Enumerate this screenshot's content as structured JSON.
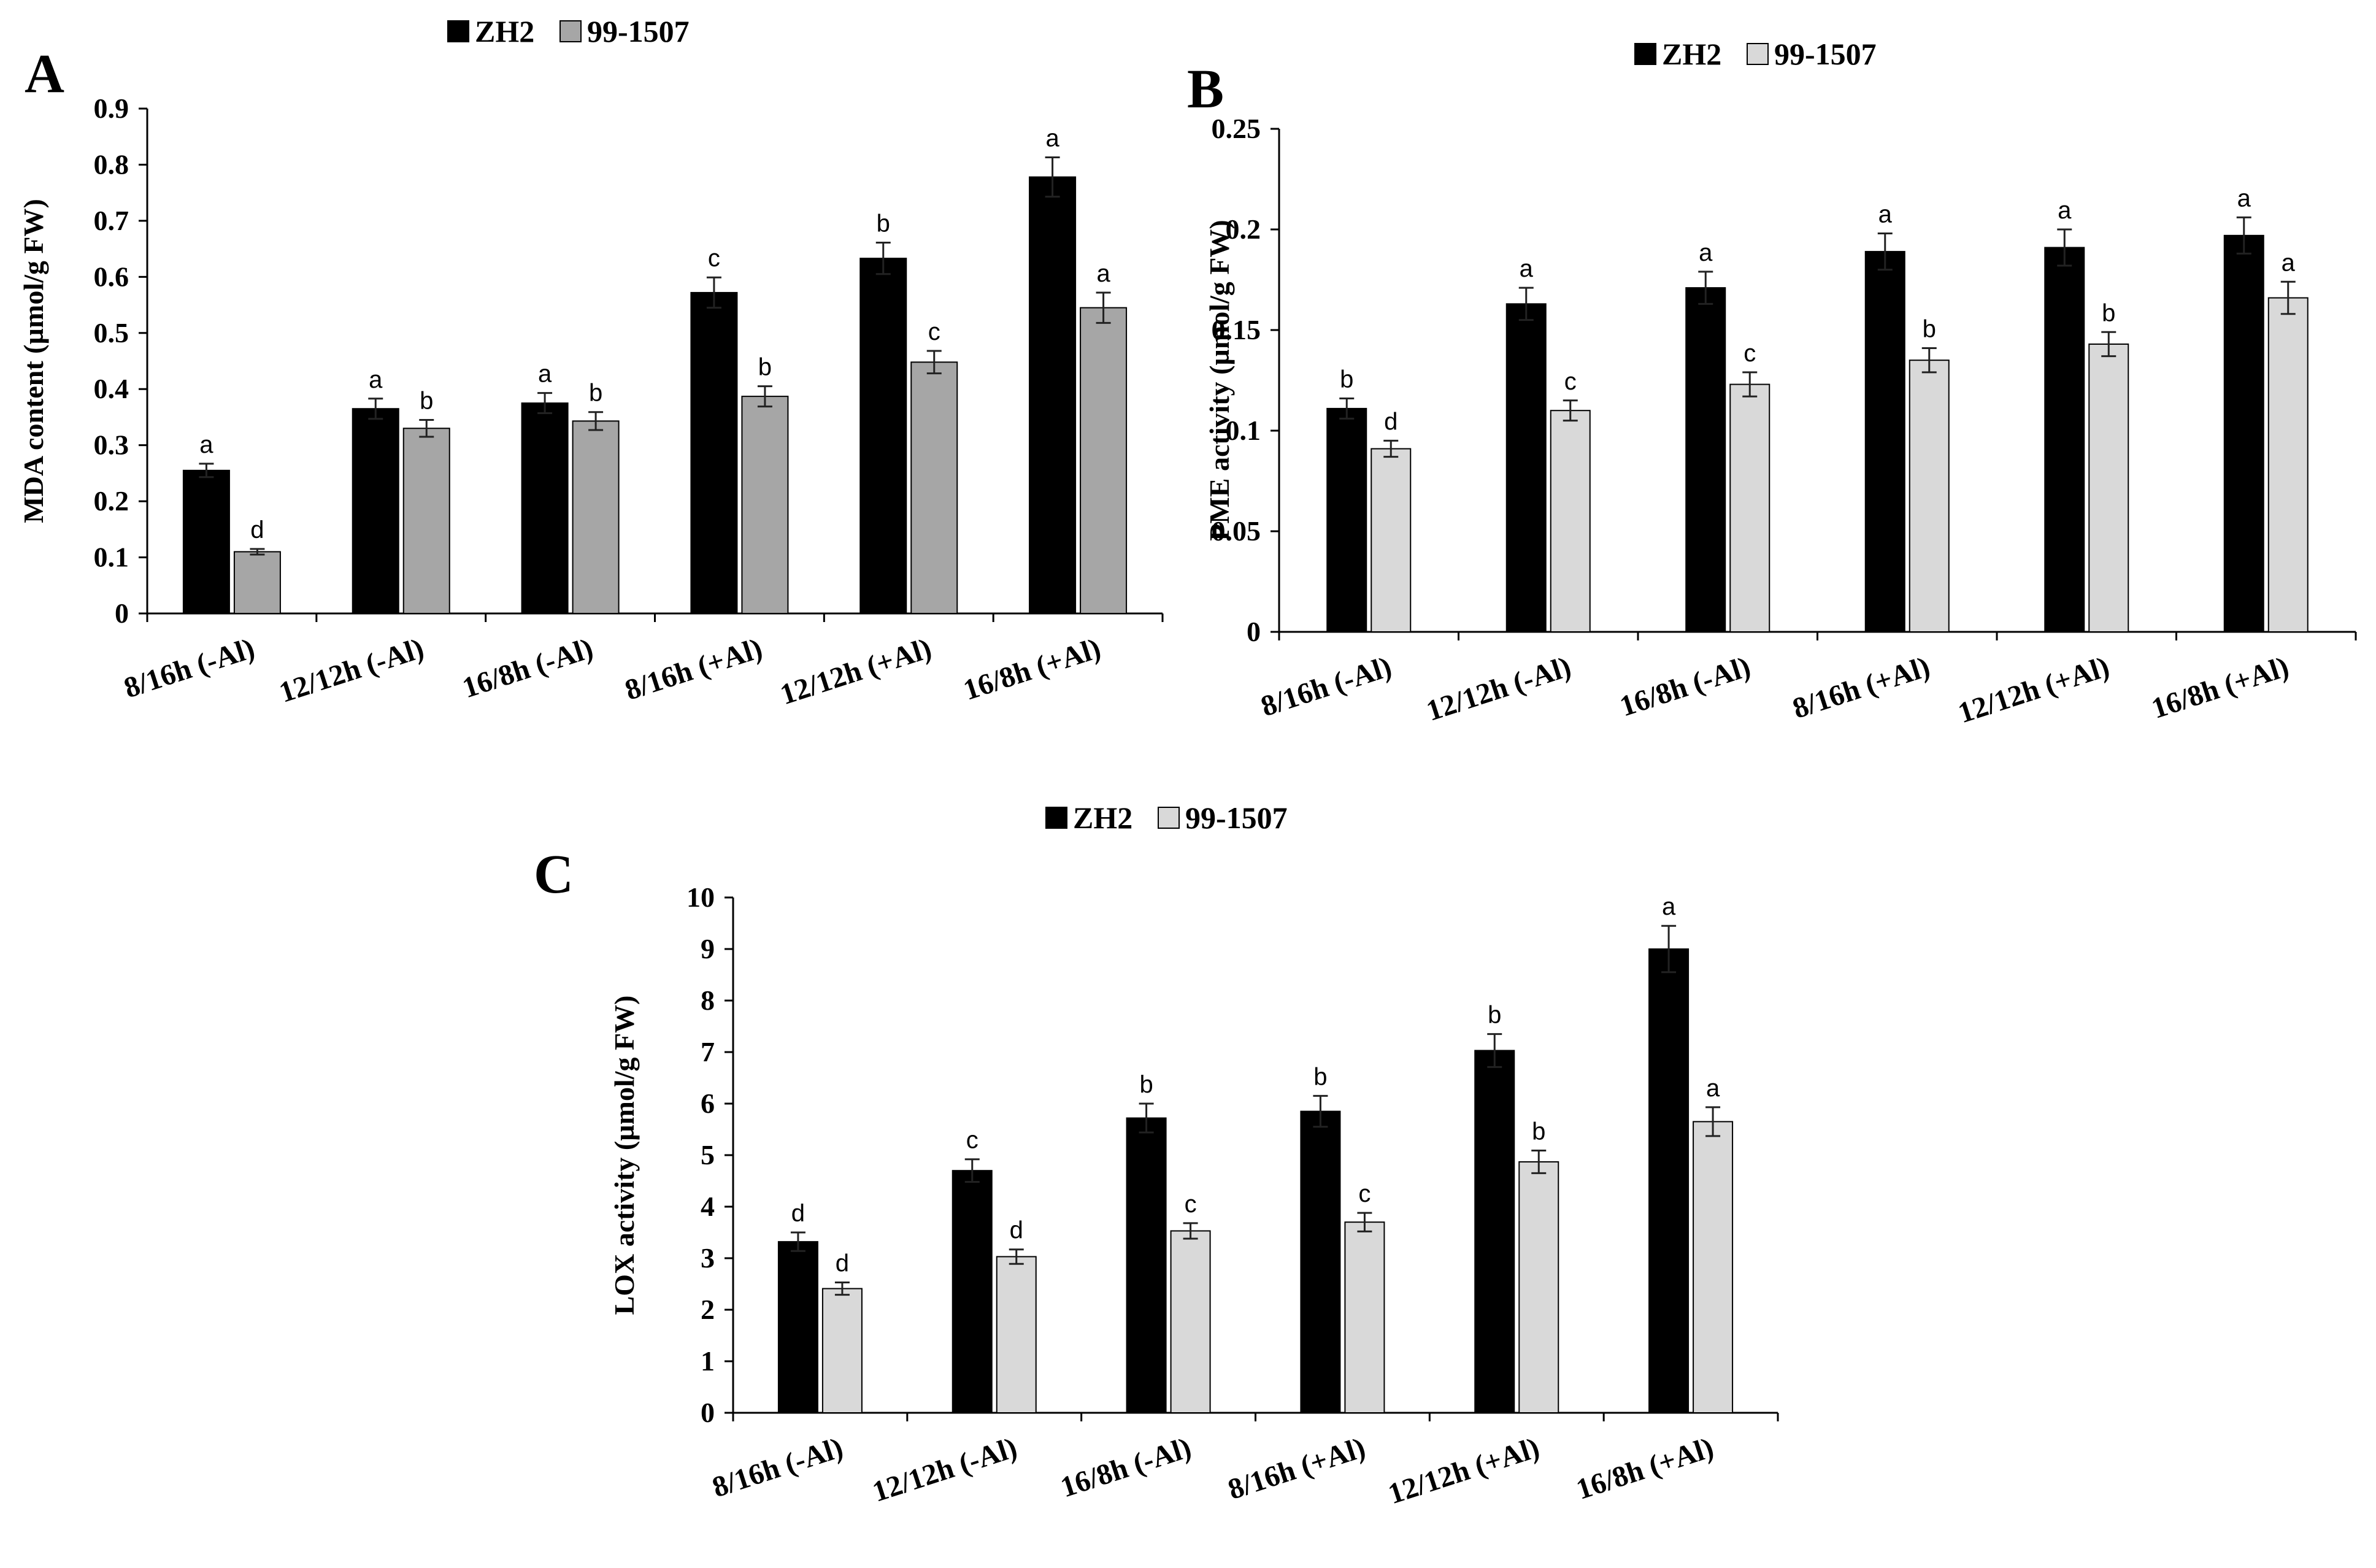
{
  "chart_data": [
    {
      "panel_label": "A",
      "type": "bar",
      "categories": [
        "8/16h (-Al)",
        "12/12h (-Al)",
        "16/8h (-Al)",
        "8/16h (+Al)",
        "12/12h (+Al)",
        "16/8h (+Al)"
      ],
      "series": [
        {
          "name": "ZH2",
          "color": "#000000",
          "values": [
            0.255,
            0.365,
            0.375,
            0.572,
            0.633,
            0.778
          ],
          "errors": [
            0.012,
            0.018,
            0.018,
            0.027,
            0.028,
            0.035
          ],
          "letters": [
            "a",
            "a",
            "a",
            "c",
            "b",
            "a"
          ]
        },
        {
          "name": "99-1507",
          "color": "#a6a6a6",
          "values": [
            0.11,
            0.33,
            0.343,
            0.387,
            0.448,
            0.545
          ],
          "errors": [
            0.005,
            0.015,
            0.016,
            0.018,
            0.02,
            0.027
          ],
          "letters": [
            "d",
            "b",
            "b",
            "b",
            "c",
            "a"
          ]
        }
      ],
      "ylabel": "MDA content (µmol/g FW)",
      "xlabel": "",
      "ylim": [
        0,
        0.9
      ],
      "yticks": [
        "0",
        "0.1",
        "0.2",
        "0.3",
        "0.4",
        "0.5",
        "0.6",
        "0.7",
        "0.8",
        "0.9"
      ],
      "legend": [
        "ZH2",
        "99-1507"
      ],
      "legend_position": "top"
    },
    {
      "panel_label": "B",
      "type": "bar",
      "categories": [
        "8/16h (-Al)",
        "12/12h (-Al)",
        "16/8h (-Al)",
        "8/16h (+Al)",
        "12/12h (+Al)",
        "16/8h (+Al)"
      ],
      "series": [
        {
          "name": "ZH2",
          "color": "#000000",
          "values": [
            0.111,
            0.163,
            0.171,
            0.189,
            0.191,
            0.197
          ],
          "errors": [
            0.005,
            0.008,
            0.008,
            0.009,
            0.009,
            0.009
          ],
          "letters": [
            "b",
            "a",
            "a",
            "a",
            "a",
            "a"
          ]
        },
        {
          "name": "99-1507",
          "color": "#d9d9d9",
          "values": [
            0.091,
            0.11,
            0.123,
            0.135,
            0.143,
            0.166
          ],
          "errors": [
            0.004,
            0.005,
            0.006,
            0.006,
            0.006,
            0.008
          ],
          "letters": [
            "d",
            "c",
            "c",
            "b",
            "b",
            "a"
          ]
        }
      ],
      "ylabel": "PME activity (µmol/g FW)",
      "xlabel": "",
      "ylim": [
        0,
        0.25
      ],
      "yticks": [
        "0",
        "0.05",
        "0.1",
        "0.15",
        "0.2",
        "0.25"
      ],
      "legend": [
        "ZH2",
        "99-1507"
      ],
      "legend_position": "top"
    },
    {
      "panel_label": "C",
      "type": "bar",
      "categories": [
        "8/16h (-Al)",
        "12/12h (-Al)",
        "16/8h (-Al)",
        "8/16h (+Al)",
        "12/12h (+Al)",
        "16/8h (+Al)"
      ],
      "series": [
        {
          "name": "ZH2",
          "color": "#000000",
          "values": [
            3.32,
            4.7,
            5.72,
            5.85,
            7.03,
            9.0
          ],
          "errors": [
            0.18,
            0.22,
            0.28,
            0.3,
            0.32,
            0.45
          ],
          "letters": [
            "d",
            "c",
            "b",
            "b",
            "b",
            "a"
          ]
        },
        {
          "name": "99-1507",
          "color": "#d9d9d9",
          "values": [
            2.41,
            3.03,
            3.53,
            3.7,
            4.87,
            5.65
          ],
          "errors": [
            0.12,
            0.14,
            0.15,
            0.18,
            0.22,
            0.28
          ],
          "letters": [
            "d",
            "d",
            "c",
            "c",
            "b",
            "a"
          ]
        }
      ],
      "ylabel": "LOX activity (µmol/g FW)",
      "xlabel": "",
      "ylim": [
        0,
        10
      ],
      "yticks": [
        "0",
        "1",
        "2",
        "3",
        "4",
        "5",
        "6",
        "7",
        "8",
        "9",
        "10"
      ],
      "legend": [
        "ZH2",
        "99-1507"
      ],
      "legend_position": "top"
    }
  ]
}
